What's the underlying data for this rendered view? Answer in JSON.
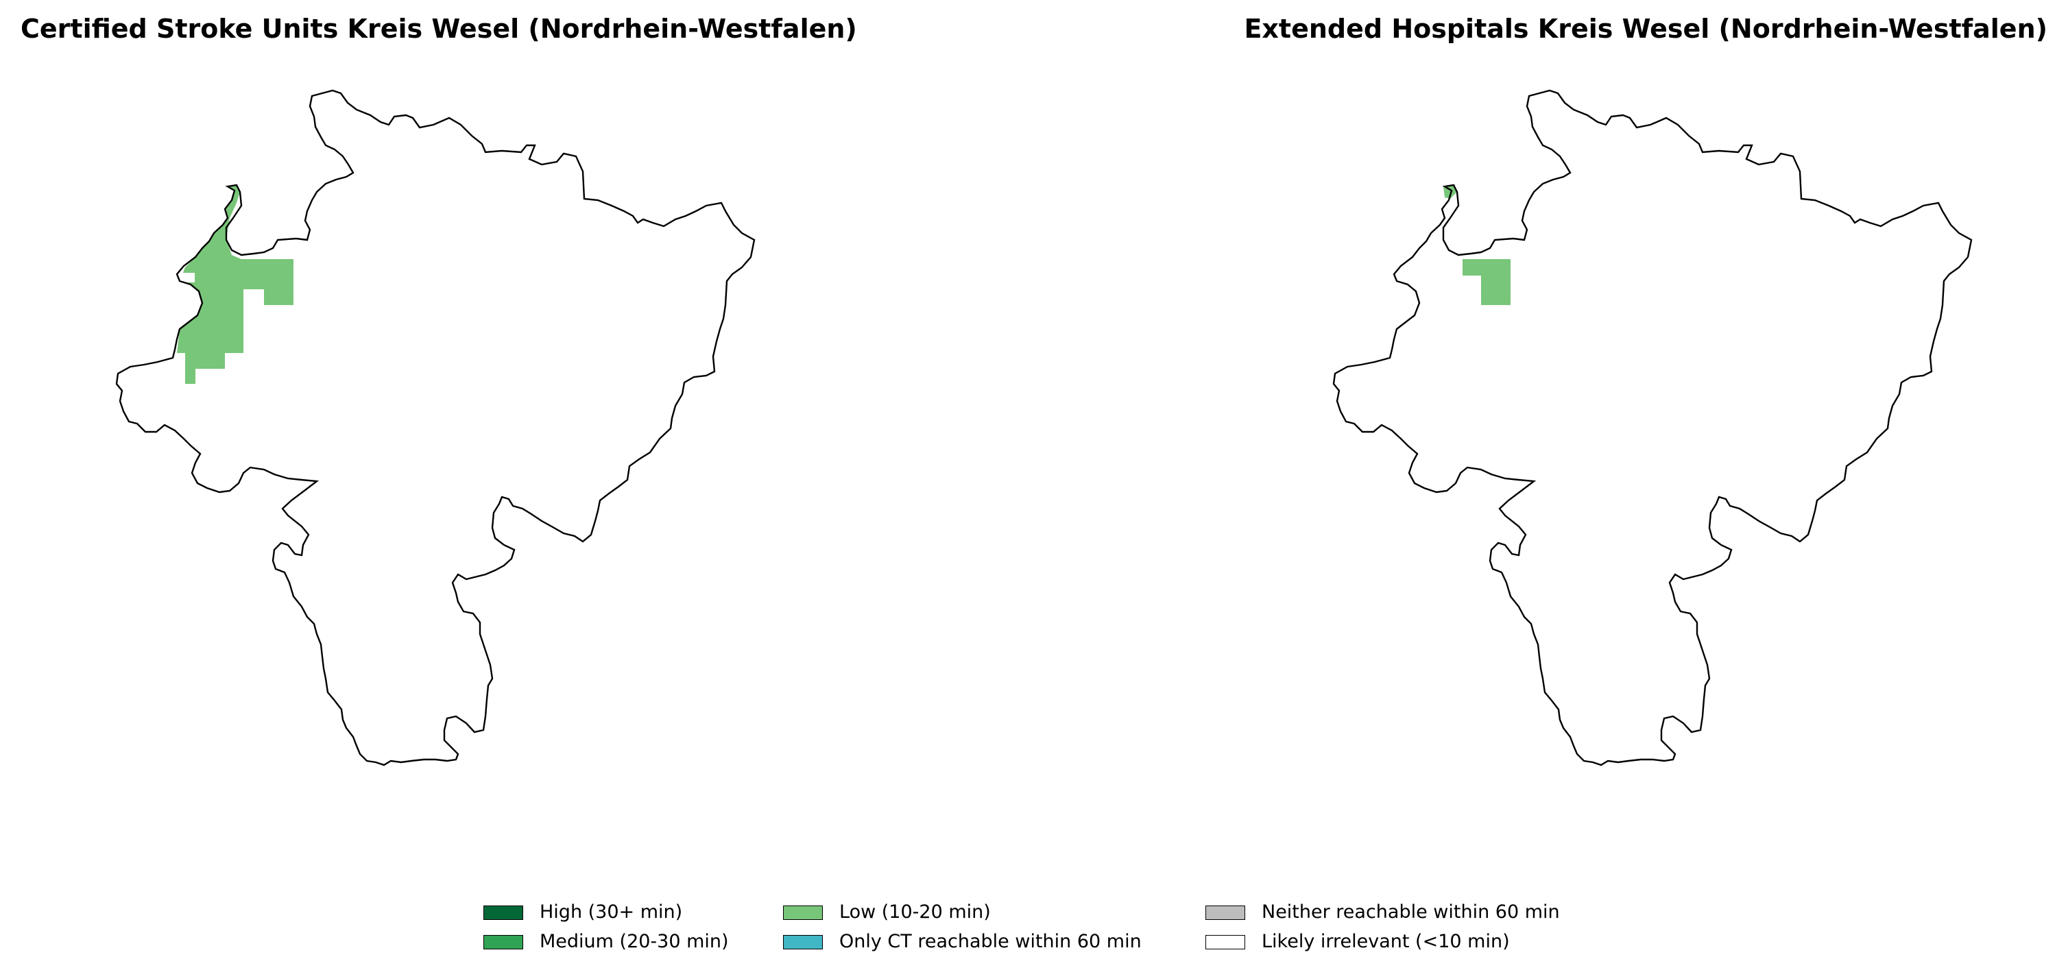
{
  "maps": [
    {
      "title": "Certified Stroke Units Kreis Wesel (Nordrhein-Westfalen)",
      "highlighted_category": "low"
    },
    {
      "title": "Extended Hospitals Kreis Wesel (Nordrhein-Westfalen)",
      "highlighted_category": "low"
    }
  ],
  "legend": {
    "items": [
      {
        "label": "High (30+ min)",
        "color": "#006837"
      },
      {
        "label": "Medium (20-30 min)",
        "color": "#31a354"
      },
      {
        "label": "Low (10-20 min)",
        "color": "#78c679"
      },
      {
        "label": "Only CT reachable within 60 min",
        "color": "#41b6c4"
      },
      {
        "label": "Neither reachable within 60 min",
        "color": "#bdbdbd"
      },
      {
        "label": "Likely irrelevant (<10 min)",
        "color": "#ffffff"
      }
    ]
  }
}
